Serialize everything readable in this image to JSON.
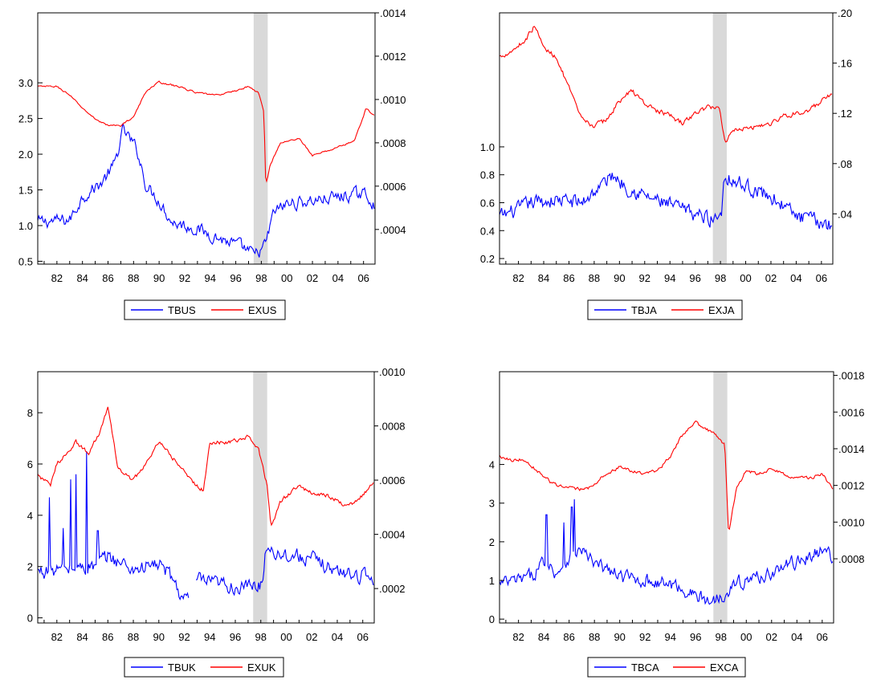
{
  "chart_data": [
    {
      "type": "line",
      "title": "",
      "x_ticks": [
        "82",
        "84",
        "86",
        "88",
        "90",
        "92",
        "94",
        "96",
        "98",
        "00",
        "02",
        "04",
        "06"
      ],
      "x_range": [
        1980.5,
        2006.9
      ],
      "shade": [
        1997.4,
        1998.5
      ],
      "left_axis": {
        "ticks": [
          "0.5",
          "1.0",
          "1.5",
          "2.0",
          "2.5",
          "3.0"
        ],
        "range": [
          0.46,
          3.98
        ]
      },
      "right_axis": {
        "ticks": [
          ".0004",
          ".0006",
          ".0008",
          ".0010",
          ".0012",
          ".0014"
        ],
        "range": [
          0.00024,
          0.0014
        ]
      },
      "series": [
        {
          "name": "TBUS",
          "axis": "left",
          "color": "#0000ff",
          "anchors": [
            [
              1980.5,
              1.05
            ],
            [
              1983,
              1.08
            ],
            [
              1984,
              1.4
            ],
            [
              1985.5,
              1.6
            ],
            [
              1986.5,
              1.85
            ],
            [
              1987.2,
              2.35
            ],
            [
              1988.3,
              2.05
            ],
            [
              1989,
              1.55
            ],
            [
              1990,
              1.35
            ],
            [
              1991,
              1.05
            ],
            [
              1993,
              0.95
            ],
            [
              1995,
              0.8
            ],
            [
              1996.5,
              0.7
            ],
            [
              1997.5,
              0.58
            ],
            [
              1998.3,
              0.72
            ],
            [
              1999,
              1.2
            ],
            [
              2000,
              1.3
            ],
            [
              2002,
              1.35
            ],
            [
              2004,
              1.4
            ],
            [
              2006,
              1.45
            ],
            [
              2006.9,
              1.3
            ]
          ],
          "noise": 0.14
        },
        {
          "name": "EXUS",
          "axis": "right",
          "color": "#ff0000",
          "anchors": [
            [
              1980.5,
              0.00106
            ],
            [
              1982,
              0.00106
            ],
            [
              1983,
              0.00102
            ],
            [
              1984,
              0.00096
            ],
            [
              1985,
              0.00091
            ],
            [
              1986,
              0.00088
            ],
            [
              1987,
              0.00088
            ],
            [
              1988,
              0.00092
            ],
            [
              1989,
              0.00104
            ],
            [
              1990,
              0.00108
            ],
            [
              1991.5,
              0.00106
            ],
            [
              1993,
              0.00103
            ],
            [
              1994.5,
              0.00102
            ],
            [
              1996,
              0.00104
            ],
            [
              1997,
              0.00106
            ],
            [
              1997.8,
              0.00103
            ],
            [
              1998.2,
              0.00094
            ],
            [
              1998.35,
              0.0006
            ],
            [
              1998.7,
              0.0007
            ],
            [
              1999.5,
              0.0008
            ],
            [
              2001,
              0.00082
            ],
            [
              2002,
              0.00074
            ],
            [
              2003,
              0.00076
            ],
            [
              2004,
              0.00078
            ],
            [
              2005.3,
              0.00081
            ],
            [
              2006.2,
              0.00096
            ],
            [
              2006.9,
              0.00092
            ]
          ],
          "noise": 6e-06
        }
      ],
      "legend": [
        "TBUS",
        "EXUS"
      ]
    },
    {
      "type": "line",
      "title": "",
      "x_ticks": [
        "82",
        "84",
        "86",
        "88",
        "90",
        "92",
        "94",
        "96",
        "98",
        "00",
        "02",
        "04",
        "06"
      ],
      "x_range": [
        1980.5,
        2006.9
      ],
      "shade": [
        1997.4,
        1998.5
      ],
      "left_axis": {
        "ticks": [
          "0.2",
          "0.4",
          "0.6",
          "0.8",
          "1.0"
        ],
        "range": [
          0.16,
          1.96
        ]
      },
      "right_axis": {
        "ticks": [
          ".04",
          ".08",
          ".12",
          ".16",
          ".20"
        ],
        "range": [
          0.0,
          0.2
        ]
      },
      "series": [
        {
          "name": "TBJA",
          "axis": "left",
          "color": "#0000ff",
          "anchors": [
            [
              1980.5,
              0.5
            ],
            [
              1982,
              0.55
            ],
            [
              1983,
              0.6
            ],
            [
              1985,
              0.62
            ],
            [
              1987,
              0.6
            ],
            [
              1988,
              0.68
            ],
            [
              1989.5,
              0.8
            ],
            [
              1990.5,
              0.72
            ],
            [
              1992,
              0.65
            ],
            [
              1994,
              0.58
            ],
            [
              1996,
              0.52
            ],
            [
              1997.5,
              0.48
            ],
            [
              1998.1,
              0.55
            ],
            [
              1998.3,
              0.8
            ],
            [
              1999.5,
              0.74
            ],
            [
              2001,
              0.68
            ],
            [
              2002.5,
              0.62
            ],
            [
              2004,
              0.5
            ],
            [
              2006,
              0.46
            ],
            [
              2006.9,
              0.44
            ]
          ],
          "noise": 0.085
        },
        {
          "name": "EXJA",
          "axis": "right",
          "color": "#ff0000",
          "anchors": [
            [
              1980.5,
              0.165
            ],
            [
              1981.5,
              0.17
            ],
            [
              1982.5,
              0.178
            ],
            [
              1983.3,
              0.19
            ],
            [
              1984,
              0.172
            ],
            [
              1985,
              0.165
            ],
            [
              1986,
              0.14
            ],
            [
              1987,
              0.115
            ],
            [
              1988,
              0.11
            ],
            [
              1989,
              0.115
            ],
            [
              1990,
              0.13
            ],
            [
              1991,
              0.138
            ],
            [
              1992,
              0.128
            ],
            [
              1993,
              0.122
            ],
            [
              1994,
              0.118
            ],
            [
              1995,
              0.112
            ],
            [
              1996,
              0.12
            ],
            [
              1997,
              0.125
            ],
            [
              1997.9,
              0.125
            ],
            [
              1998.4,
              0.096
            ],
            [
              1999,
              0.108
            ],
            [
              2000,
              0.108
            ],
            [
              2001,
              0.11
            ],
            [
              2002,
              0.112
            ],
            [
              2003,
              0.118
            ],
            [
              2004,
              0.12
            ],
            [
              2005,
              0.122
            ],
            [
              2006.9,
              0.136
            ]
          ],
          "noise": 0.003
        }
      ],
      "legend": [
        "TBJA",
        "EXJA"
      ]
    },
    {
      "type": "line",
      "title": "",
      "x_ticks": [
        "82",
        "84",
        "86",
        "88",
        "90",
        "92",
        "94",
        "96",
        "98",
        "00",
        "02",
        "04",
        "06"
      ],
      "x_range": [
        1980.5,
        2006.9
      ],
      "shade": [
        1997.4,
        1998.5
      ],
      "left_axis": {
        "ticks": [
          "0",
          "2",
          "4",
          "6",
          "8"
        ],
        "range": [
          -0.2,
          9.6
        ]
      },
      "right_axis": {
        "ticks": [
          ".0002",
          ".0004",
          ".0006",
          ".0008",
          ".0010"
        ],
        "range": [
          7.3e-05,
          0.001
        ]
      },
      "series": [
        {
          "name": "TBUK",
          "axis": "left",
          "color": "#0000ff",
          "anchors": [
            [
              1980.5,
              1.8
            ],
            [
              1983,
              1.9
            ],
            [
              1985,
              2.0
            ],
            [
              1986,
              2.4
            ],
            [
              1988,
              1.9
            ],
            [
              1990,
              2.1
            ],
            [
              1991,
              1.6
            ],
            [
              1991.7,
              0.9
            ],
            [
              1992.3,
              0.65
            ]
          ],
          "spikes": [
            [
              1981.4,
              4.7
            ],
            [
              1982.5,
              3.5
            ],
            [
              1983.1,
              5.4
            ],
            [
              1983.5,
              5.6
            ],
            [
              1984.3,
              6.5
            ],
            [
              1985.2,
              3.4
            ]
          ],
          "gap_after": 1992.4,
          "anchors2": [
            [
              1992.9,
              1.5
            ],
            [
              1994,
              1.35
            ],
            [
              1995,
              1.3
            ],
            [
              1996.5,
              1.15
            ],
            [
              1998.1,
              1.3
            ],
            [
              1998.4,
              2.8
            ],
            [
              1999.5,
              2.5
            ],
            [
              2001,
              2.4
            ],
            [
              2002.5,
              2.2
            ],
            [
              2004,
              1.8
            ],
            [
              2005.5,
              1.7
            ],
            [
              2006.9,
              1.55
            ]
          ],
          "noise": 0.45
        },
        {
          "name": "EXUK",
          "axis": "right",
          "color": "#ff0000",
          "anchors": [
            [
              1980.5,
              0.00062
            ],
            [
              1981.5,
              0.00058
            ],
            [
              1982,
              0.00066
            ],
            [
              1983.5,
              0.00074
            ],
            [
              1984.5,
              0.0007
            ],
            [
              1985.4,
              0.00078
            ],
            [
              1986,
              0.00087
            ],
            [
              1986.8,
              0.00064
            ],
            [
              1988,
              0.0006
            ],
            [
              1989,
              0.00066
            ],
            [
              1990,
              0.00074
            ],
            [
              1991.5,
              0.00066
            ],
            [
              1992.5,
              0.0006
            ],
            [
              1993.5,
              0.00056
            ],
            [
              1994,
              0.00074
            ],
            [
              1995.5,
              0.00074
            ],
            [
              1997,
              0.00076
            ],
            [
              1997.8,
              0.00072
            ],
            [
              1998.5,
              0.00058
            ],
            [
              1998.8,
              0.00042
            ],
            [
              1999.5,
              0.00052
            ],
            [
              2001,
              0.00058
            ],
            [
              2002,
              0.00055
            ],
            [
              2003,
              0.00055
            ],
            [
              2004.5,
              0.00051
            ],
            [
              2005.5,
              0.00052
            ],
            [
              2006.9,
              0.00059
            ]
          ],
          "noise": 1.2e-05
        }
      ],
      "legend": [
        "TBUK",
        "EXUK"
      ]
    },
    {
      "type": "line",
      "title": "",
      "x_ticks": [
        "82",
        "84",
        "86",
        "88",
        "90",
        "92",
        "94",
        "96",
        "98",
        "00",
        "02",
        "04",
        "06"
      ],
      "x_range": [
        1980.5,
        2006.9
      ],
      "shade": [
        1997.4,
        1998.5
      ],
      "left_axis": {
        "ticks": [
          "0",
          "1",
          "2",
          "3",
          "4"
        ],
        "range": [
          -0.1,
          6.4
        ]
      },
      "right_axis": {
        "ticks": [
          ".0008",
          ".0010",
          ".0012",
          ".0014",
          ".0016",
          ".0018"
        ],
        "range": [
          0.00045,
          0.00182
        ]
      },
      "series": [
        {
          "name": "TBCA",
          "axis": "left",
          "color": "#0000ff",
          "anchors": [
            [
              1980.5,
              0.9
            ],
            [
              1982,
              1.0
            ],
            [
              1983,
              1.1
            ],
            [
              1984,
              1.5
            ],
            [
              1985,
              1.2
            ],
            [
              1986,
              1.6
            ],
            [
              1987,
              1.8
            ],
            [
              1988,
              1.4
            ],
            [
              1989,
              1.3
            ],
            [
              1990,
              1.1
            ],
            [
              1992,
              1.0
            ],
            [
              1994,
              0.9
            ],
            [
              1995.5,
              0.7
            ],
            [
              1997,
              0.45
            ],
            [
              1998,
              0.6
            ],
            [
              1999,
              0.9
            ],
            [
              2000,
              1.0
            ],
            [
              2002,
              1.2
            ],
            [
              2003,
              1.35
            ],
            [
              2004,
              1.5
            ],
            [
              2005,
              1.6
            ],
            [
              2006,
              1.8
            ],
            [
              2006.9,
              1.6
            ]
          ],
          "spikes": [
            [
              1984.2,
              2.7
            ],
            [
              1985.6,
              2.5
            ],
            [
              1986.4,
              3.1
            ],
            [
              1986.2,
              2.9
            ]
          ],
          "noise": 0.28
        },
        {
          "name": "EXCA",
          "axis": "right",
          "color": "#ff0000",
          "anchors": [
            [
              1980.5,
              0.00136
            ],
            [
              1981.5,
              0.00134
            ],
            [
              1982.5,
              0.00134
            ],
            [
              1983.5,
              0.00128
            ],
            [
              1984.5,
              0.00122
            ],
            [
              1985.5,
              0.00119
            ],
            [
              1986.5,
              0.00118
            ],
            [
              1987.5,
              0.00118
            ],
            [
              1988.5,
              0.00124
            ],
            [
              1990,
              0.0013
            ],
            [
              1991,
              0.00128
            ],
            [
              1992,
              0.00126
            ],
            [
              1993,
              0.00128
            ],
            [
              1994,
              0.00136
            ],
            [
              1995,
              0.00148
            ],
            [
              1996,
              0.00154
            ],
            [
              1997,
              0.0015
            ],
            [
              1997.8,
              0.00146
            ],
            [
              1998.3,
              0.00142
            ],
            [
              1998.6,
              0.00094
            ],
            [
              1999.2,
              0.00118
            ],
            [
              2000,
              0.00128
            ],
            [
              2001,
              0.00126
            ],
            [
              2002,
              0.00129
            ],
            [
              2003,
              0.00126
            ],
            [
              2004,
              0.00124
            ],
            [
              2005,
              0.00124
            ],
            [
              2006,
              0.00126
            ],
            [
              2006.9,
              0.00118
            ]
          ],
          "noise": 1.4e-05
        }
      ],
      "legend": [
        "TBCA",
        "EXCA"
      ]
    }
  ],
  "colors": {
    "tb": "#0000ff",
    "ex": "#ff0000",
    "shade": "#d9d9d9",
    "axis": "#000000"
  }
}
